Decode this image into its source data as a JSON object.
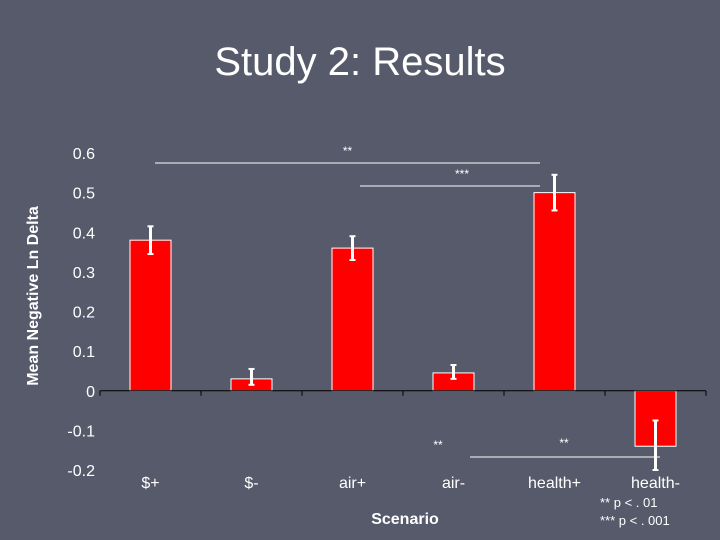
{
  "slide": {
    "title": "Study 2: Results"
  },
  "colors": {
    "background": "#565a6a",
    "bar": "#ff0000",
    "bar_border": "#ffffff",
    "error_bar": "#ffffff",
    "axis": "#000000",
    "text": "#ffffff"
  },
  "chart_data": {
    "type": "bar",
    "title": "",
    "xlabel": "Scenario",
    "ylabel": "Mean Negative Ln Delta",
    "ylim": [
      -0.2,
      0.6
    ],
    "yticks": [
      0.6,
      0.5,
      0.4,
      0.3,
      0.2,
      0.1,
      0,
      -0.1,
      -0.2
    ],
    "ytick_labels": [
      "0.6",
      "0.5",
      "0.4",
      "0.3",
      "0.2",
      "0.1",
      "0",
      "-0.1",
      "-0.2"
    ],
    "categories": [
      "$+",
      "$-",
      "air+",
      "air-",
      "health+",
      "health-"
    ],
    "values": [
      0.38,
      0.03,
      0.36,
      0.045,
      0.5,
      -0.14
    ],
    "error_low": [
      0.345,
      0.015,
      0.33,
      0.03,
      0.455,
      -0.2
    ],
    "error_high": [
      0.415,
      0.055,
      0.39,
      0.065,
      0.545,
      -0.075
    ],
    "grid": false,
    "annotations": [
      {
        "label": "**",
        "from": "$-",
        "to": "health+"
      },
      {
        "label": "***",
        "from": "air-",
        "to": "health+"
      },
      {
        "label": "**",
        "from": "air-",
        "to": "health-"
      }
    ]
  },
  "footnotes": [
    "** p < . 01",
    "*** p < . 001"
  ]
}
